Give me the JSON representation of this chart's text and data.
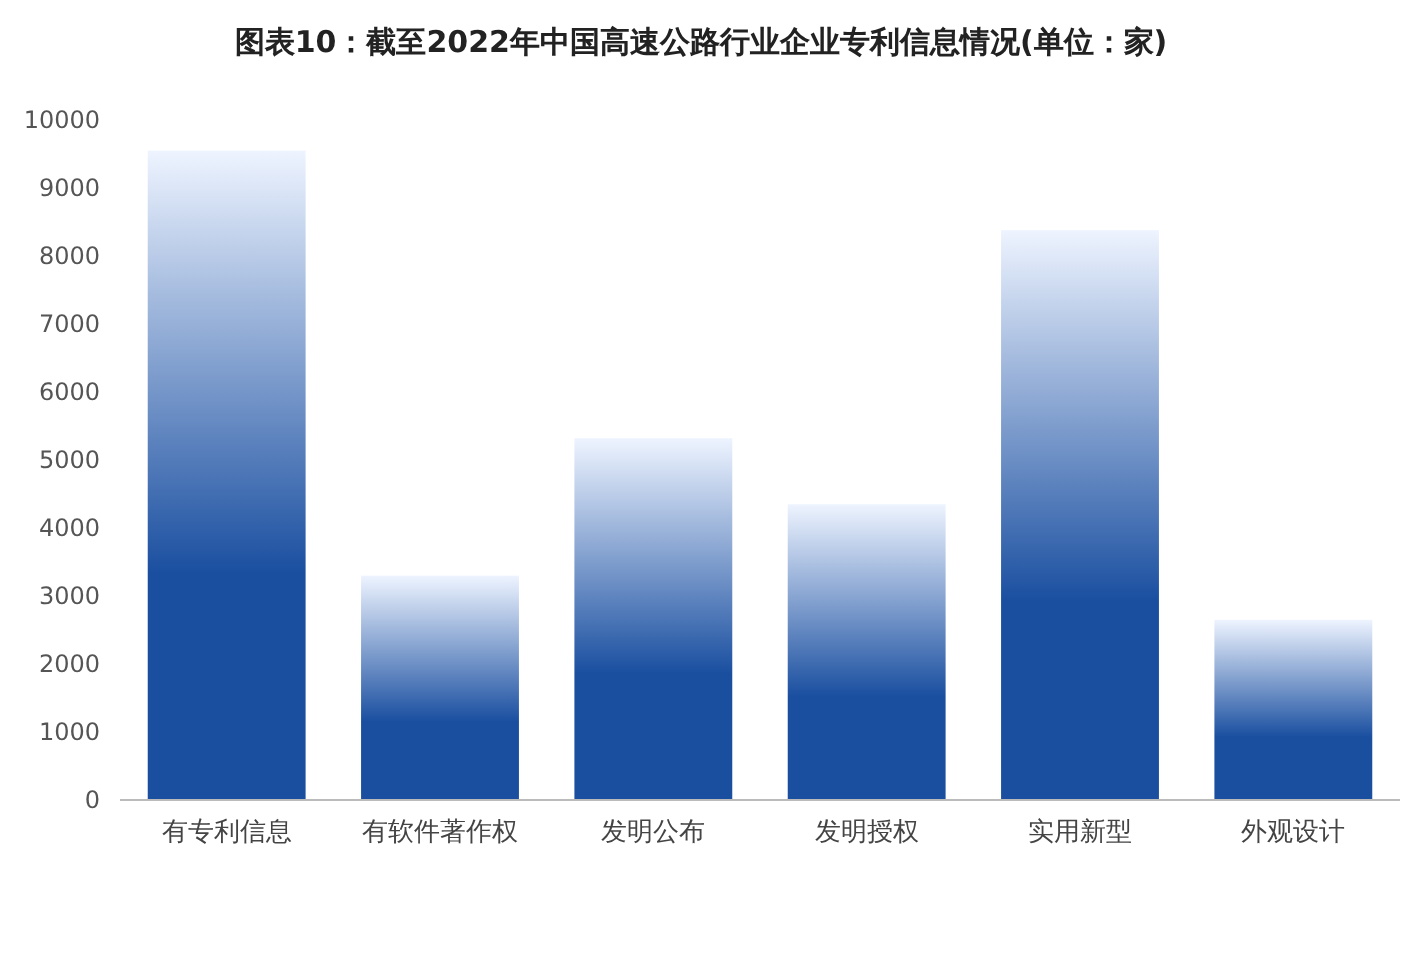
{
  "chart_data": {
    "type": "bar",
    "title": "图表10：截至2022年中国高速公路行业企业专利信息情况(单位：家)",
    "categories": [
      "有专利信息",
      "有软件著作权",
      "发明公布",
      "发明授权",
      "实用新型",
      "外观设计"
    ],
    "values": [
      9550,
      3300,
      5320,
      4350,
      8380,
      2650
    ],
    "color": "#1a4fa0",
    "ylim": [
      0,
      10000
    ],
    "yticks": [
      0,
      1000,
      2000,
      3000,
      4000,
      5000,
      6000,
      7000,
      8000,
      9000,
      10000
    ],
    "grid": false
  }
}
